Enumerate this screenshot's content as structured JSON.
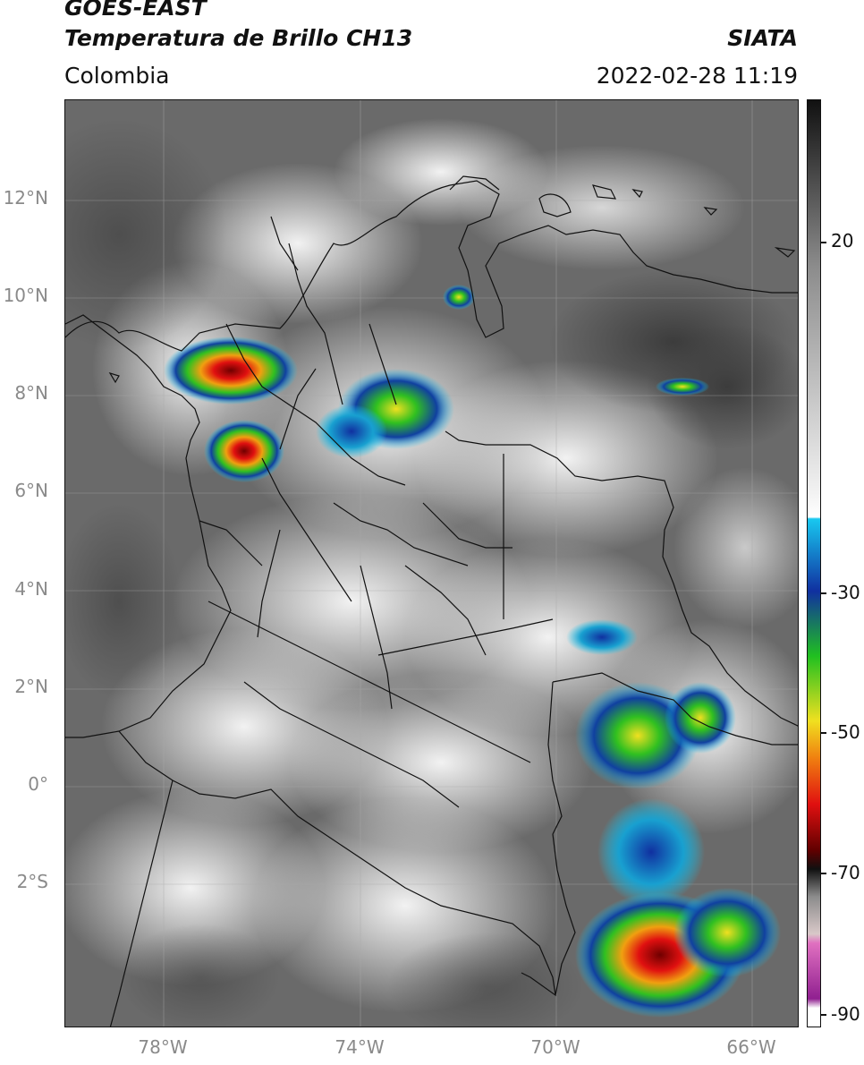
{
  "header": {
    "title_line1": "GOES-EAST",
    "title_line2": "Temperatura de Brillo CH13",
    "region": "Colombia",
    "org": "SIATA",
    "timestamp": "2022-02-28 11:19"
  },
  "map": {
    "lat_labels": [
      "12°N",
      "10°N",
      "8°N",
      "6°N",
      "4°N",
      "2°N",
      "0°",
      "2°S"
    ],
    "lon_labels": [
      "78°W",
      "74°W",
      "70°W",
      "66°W"
    ]
  },
  "colorbar": {
    "labels": [
      "20",
      "-30",
      "-50",
      "-70",
      "-90"
    ],
    "colors": {
      "gray_top": "#111111",
      "gray_mid": "#8c8c8c",
      "gray_light": "#f0f0f0",
      "cyan": "#18c8f0",
      "blue": "#1030a0",
      "green": "#20c020",
      "yellow": "#f0e020",
      "orange": "#f08010",
      "red": "#e01010",
      "dark_red": "#600000",
      "black": "#101010",
      "pink": "#e070c0",
      "purple": "#902090"
    }
  }
}
